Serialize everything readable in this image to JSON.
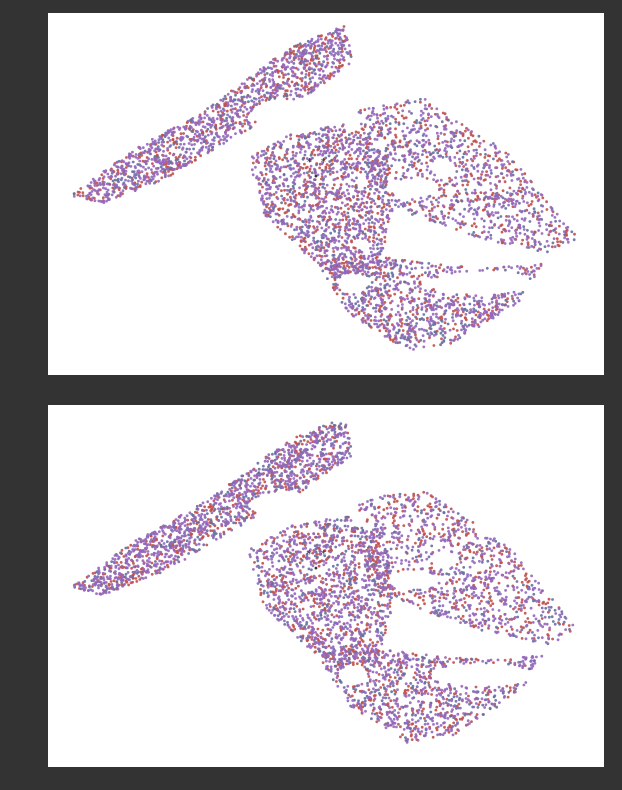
{
  "chart_data": [
    {
      "type": "scatter",
      "title": "",
      "xlabel": "",
      "ylabel": "",
      "axes_visible": false,
      "grid": false,
      "legend": "none",
      "marker_size": "tiny",
      "seed": 7,
      "point_groups": [
        {
          "label": "red",
          "color": "#c0504d",
          "count": 1500
        },
        {
          "label": "blue",
          "color": "#6470a0",
          "count": 850
        },
        {
          "label": "purple",
          "color": "#9467bd",
          "count": 2400
        }
      ],
      "markers": [
        {
          "symbol": "*",
          "color": "#333333",
          "x": 0.47,
          "y": 0.58
        },
        {
          "symbol": "*",
          "color": "#333333",
          "x": 0.495,
          "y": 0.58
        },
        {
          "symbol": "•",
          "color": "#333333",
          "x": 0.482,
          "y": 0.54
        }
      ]
    },
    {
      "type": "scatter",
      "title": "",
      "xlabel": "",
      "ylabel": "",
      "axes_visible": false,
      "grid": false,
      "legend": "none",
      "marker_size": "tiny",
      "seed": 11,
      "point_groups": [
        {
          "label": "red",
          "color": "#c0504d",
          "count": 1500
        },
        {
          "label": "blue",
          "color": "#6470a0",
          "count": 850
        },
        {
          "label": "purple",
          "color": "#9467bd",
          "count": 2400
        }
      ],
      "markers": [
        {
          "symbol": "*",
          "color": "#333333",
          "x": 0.47,
          "y": 0.58
        },
        {
          "symbol": "*",
          "color": "#333333",
          "x": 0.495,
          "y": 0.58
        },
        {
          "symbol": "•",
          "color": "#333333",
          "x": 0.482,
          "y": 0.54
        }
      ]
    }
  ]
}
